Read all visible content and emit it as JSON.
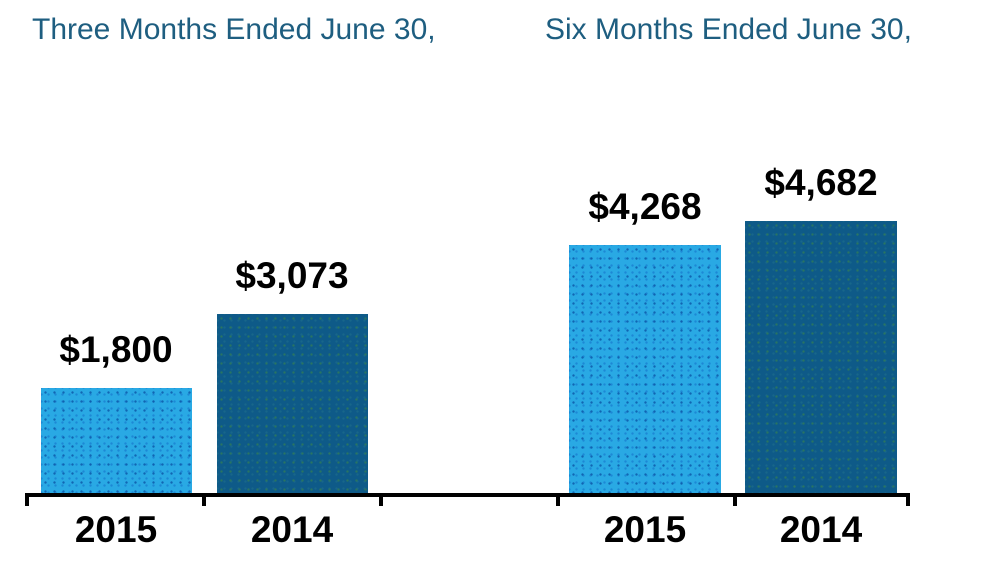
{
  "chart_data": {
    "type": "bar",
    "groups": [
      {
        "title": "Three Months Ended June 30,",
        "bars": [
          {
            "category": "2015",
            "value": 1800,
            "label": "$1,800",
            "color_key": "light_blue"
          },
          {
            "category": "2014",
            "value": 3073,
            "label": "$3,073",
            "color_key": "dark_blue"
          }
        ]
      },
      {
        "title": "Six Months Ended June 30,",
        "bars": [
          {
            "category": "2015",
            "value": 4268,
            "label": "$4,268",
            "color_key": "light_blue"
          },
          {
            "category": "2014",
            "value": 4682,
            "label": "$4,682",
            "color_key": "dark_blue"
          }
        ]
      }
    ],
    "colors": {
      "light_blue": "#29A9E4",
      "dark_blue": "#0E5A88",
      "title_text": "#1E5E80",
      "axis": "#000000",
      "label_text": "#000000"
    },
    "xlabel": "",
    "ylabel": "",
    "ylim": [
      0,
      4682
    ],
    "grid": false,
    "legend": false
  }
}
